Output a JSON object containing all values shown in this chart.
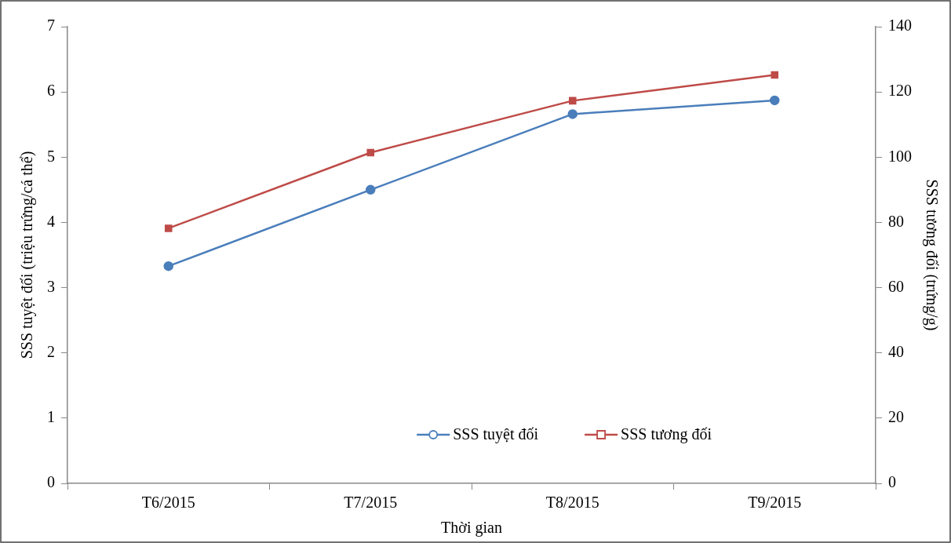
{
  "chart_data": {
    "type": "line",
    "xlabel": "Thời gian",
    "ylabel": "SSS tuyệt đối (triệu trứng/cá thể)",
    "y2label": "SSS tương đối (trứng/g)",
    "categories": [
      "T6/2015",
      "T7/2015",
      "T8/2015",
      "T9/2015"
    ],
    "series": [
      {
        "name": "SSS tuyệt đối",
        "color": "#4a7ebb",
        "values": [
          3.33,
          4.5,
          5.66,
          5.87
        ],
        "marker": "circle"
      },
      {
        "name": "SSS tương đối",
        "color": "#be4b48",
        "values": [
          78.2,
          101.4,
          117.3,
          125.2
        ],
        "axis": "y2",
        "marker": "square"
      }
    ],
    "ylim": [
      0,
      7
    ],
    "yticks": [
      0,
      1,
      2,
      3,
      4,
      5,
      6,
      7
    ],
    "y2lim": [
      0,
      140
    ],
    "y2ticks": [
      0,
      20,
      40,
      60,
      80,
      100,
      120,
      140
    ],
    "grid": false,
    "legend": "bottom right",
    "line_style": "solid"
  }
}
